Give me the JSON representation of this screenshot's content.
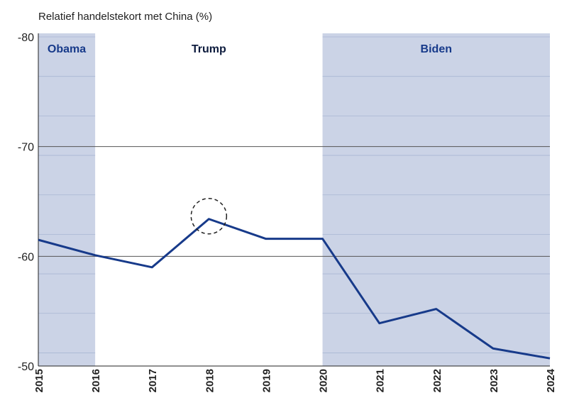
{
  "chart_data": {
    "type": "line",
    "title": "",
    "ylabel": "Relatief handelstekort met China (%)",
    "xlabel": "",
    "x": [
      "2015",
      "2016",
      "2017",
      "2018",
      "2019",
      "2020",
      "2021",
      "2022",
      "2023",
      "2024"
    ],
    "series": [
      {
        "values": [
          -61.5,
          -60.1,
          -59.0,
          -63.4,
          -61.6,
          -61.6,
          -53.9,
          -55.2,
          -51.6,
          -50.7
        ]
      }
    ],
    "ylim": [
      -50,
      -80
    ],
    "yticks": [
      -80,
      -70,
      -60,
      -50
    ],
    "grid": true,
    "reversed_y": true,
    "periods": [
      {
        "label": "Obama",
        "start": "2015",
        "end": "2016",
        "shaded": true
      },
      {
        "label": "Trump",
        "start": "2016",
        "end": "2020",
        "shaded": false
      },
      {
        "label": "Biden",
        "start": "2020",
        "end": "2024",
        "shaded": true
      }
    ],
    "highlight": {
      "x": "2018",
      "shape": "dashed-circle"
    },
    "colors": {
      "line": "#173a8a",
      "shade": "#cbd3e6",
      "minor_grid": "#a9b6d3",
      "major_grid": "#555555"
    }
  }
}
